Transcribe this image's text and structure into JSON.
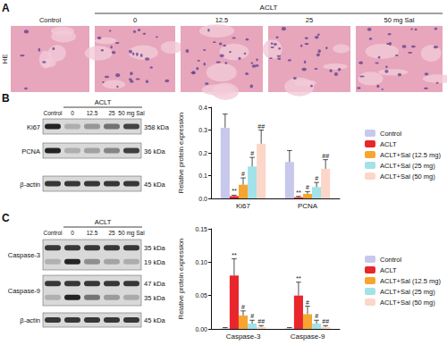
{
  "panel_a": {
    "label": "A",
    "group": "ACLT",
    "lanes": [
      "Control",
      "0",
      "12.5",
      "25",
      "50 mg Sal"
    ],
    "stain": "HE"
  },
  "panel_b": {
    "label": "B",
    "group": "ACLT",
    "lanes": [
      "Control",
      "0",
      "12.5",
      "25",
      "50 mg Sal"
    ],
    "blot": [
      {
        "protein": "Ki67",
        "kda": [
          "358 kDa"
        ]
      },
      {
        "protein": "PCNA",
        "kda": [
          "36 kDa"
        ]
      },
      {
        "protein": "β-actin",
        "kda": [
          "45 kDa"
        ]
      }
    ]
  },
  "panel_c": {
    "label": "C",
    "group": "ACLT",
    "lanes": [
      "Control",
      "0",
      "12.5",
      "25",
      "50 mg Sal"
    ],
    "blot": [
      {
        "protein": "Caspase-3",
        "kda": [
          "35 kDa",
          "19 kDa"
        ]
      },
      {
        "protein": "Caspase-9",
        "kda": [
          "47 kDa",
          "35 kDa"
        ]
      },
      {
        "protein": "β-actin",
        "kda": [
          "45 kDa"
        ]
      }
    ]
  },
  "chart_data": [
    {
      "type": "bar",
      "categories": [
        "Ki67",
        "PCNA"
      ],
      "ylabel": "Relative protein expression",
      "ylim": [
        0,
        0.4
      ],
      "yticks": [
        {
          "value": 0,
          "label": "0.0"
        },
        0.1,
        0.2,
        0.3,
        0.4
      ],
      "grid": false,
      "legend": "right",
      "series": [
        {
          "name": "Control",
          "color": "#c8c8ec",
          "values": [
            0.31,
            0.16
          ],
          "errors": [
            0.06,
            0.05
          ]
        },
        {
          "name": "ACLT",
          "color": "#e8262b",
          "values": [
            0.01,
            0.005
          ],
          "errors": [
            0.004,
            0.004
          ],
          "marks": [
            "**",
            "**"
          ]
        },
        {
          "name": "ACLT+Sal (12.5 mg)",
          "color": "#f7a531",
          "values": [
            0.06,
            0.02
          ],
          "errors": [
            0.03,
            0.01
          ],
          "marks": [
            "#",
            "#"
          ]
        },
        {
          "name": "ACLT+Sal (25 mg)",
          "color": "#a3e2e8",
          "values": [
            0.14,
            0.05
          ],
          "errors": [
            0.04,
            0.02
          ],
          "marks": [
            "#",
            "#"
          ]
        },
        {
          "name": "ACLT+Sal (50 mg)",
          "color": "#fcd6c8",
          "values": [
            0.24,
            0.13
          ],
          "errors": [
            0.06,
            0.04
          ],
          "marks": [
            "##",
            "##"
          ]
        }
      ]
    },
    {
      "type": "bar",
      "categories": [
        "Caspase-3",
        "Caspase-9"
      ],
      "ylabel": "Relative protein expression",
      "ylim": [
        0,
        0.15
      ],
      "yticks": [
        {
          "value": 0,
          "label": "0.00"
        },
        {
          "value": 0.05,
          "label": "0.05"
        },
        {
          "value": 0.1,
          "label": "0.10"
        },
        {
          "value": 0.15,
          "label": "0.15"
        }
      ],
      "grid": false,
      "legend": "right",
      "series": [
        {
          "name": "Control",
          "color": "#c8c8ec",
          "values": [
            0.001,
            0.001
          ],
          "errors": [
            0.001,
            0.001
          ]
        },
        {
          "name": "ACLT",
          "color": "#e8262b",
          "values": [
            0.08,
            0.05
          ],
          "errors": [
            0.025,
            0.02
          ],
          "marks": [
            "**",
            "**"
          ]
        },
        {
          "name": "ACLT+Sal (12.5 mg)",
          "color": "#f7a531",
          "values": [
            0.02,
            0.022
          ],
          "errors": [
            0.007,
            0.012
          ],
          "marks": [
            "#",
            "#"
          ]
        },
        {
          "name": "ACLT+Sal (25 mg)",
          "color": "#a3e2e8",
          "values": [
            0.008,
            0.008
          ],
          "errors": [
            0.005,
            0.005
          ],
          "marks": [
            "#",
            "#"
          ]
        },
        {
          "name": "ACLT+Sal (50 mg)",
          "color": "#fcd6c8",
          "values": [
            0.003,
            0.003
          ],
          "errors": [
            0.002,
            0.002
          ],
          "marks": [
            "##",
            "##"
          ]
        }
      ]
    }
  ]
}
